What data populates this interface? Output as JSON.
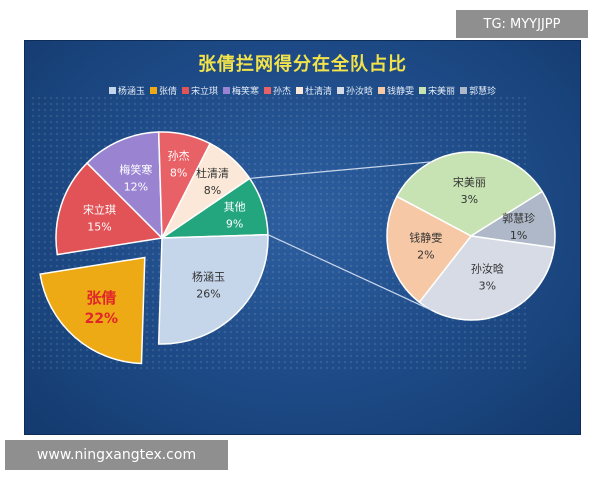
{
  "watermark": "TG: MYYJJPP",
  "url": "www.ningxangtex.com",
  "chart_data": {
    "type": "pie",
    "subtype": "pie-of-pie",
    "title": "张倩拦网得分在全队占比",
    "legend_position": "top",
    "legend": [
      "杨涵玉",
      "张倩",
      "宋立琪",
      "梅笑寒",
      "孙杰",
      "杜清清",
      "孙汝晗",
      "钱静雯",
      "宋美丽",
      "郭慧珍"
    ],
    "main_pie": [
      {
        "label": "杨涵玉",
        "value": 26,
        "pct": "26%",
        "color": "#c5d5ea"
      },
      {
        "label": "张倩",
        "value": 22,
        "pct": "22%",
        "color": "#eeaa14",
        "exploded": true
      },
      {
        "label": "宋立琪",
        "value": 15,
        "pct": "15%",
        "color": "#e25357"
      },
      {
        "label": "梅笑寒",
        "value": 12,
        "pct": "12%",
        "color": "#9a84d2"
      },
      {
        "label": "孙杰",
        "value": 8,
        "pct": "8%",
        "color": "#e86166"
      },
      {
        "label": "杜清清",
        "value": 8,
        "pct": "8%",
        "color": "#fbe8d8"
      },
      {
        "label": "其他",
        "value": 9,
        "pct": "9%",
        "color": "#23a57d"
      }
    ],
    "secondary_pie": [
      {
        "label": "宋美丽",
        "value": 3,
        "pct": "3%",
        "color": "#c7e3b3"
      },
      {
        "label": "郭慧珍",
        "value": 1,
        "pct": "1%",
        "color": "#aeb8c8"
      },
      {
        "label": "孙汝晗",
        "value": 3,
        "pct": "3%",
        "color": "#d6dbe6"
      },
      {
        "label": "钱静雯",
        "value": 2,
        "pct": "2%",
        "color": "#f6c8a5"
      }
    ],
    "legend_colors": [
      "#c5d5ea",
      "#eeaa14",
      "#e25357",
      "#9a84d2",
      "#e86166",
      "#fbe8d8",
      "#d6dbe6",
      "#f6c8a5",
      "#c7e3b3",
      "#aeb8c8"
    ]
  }
}
